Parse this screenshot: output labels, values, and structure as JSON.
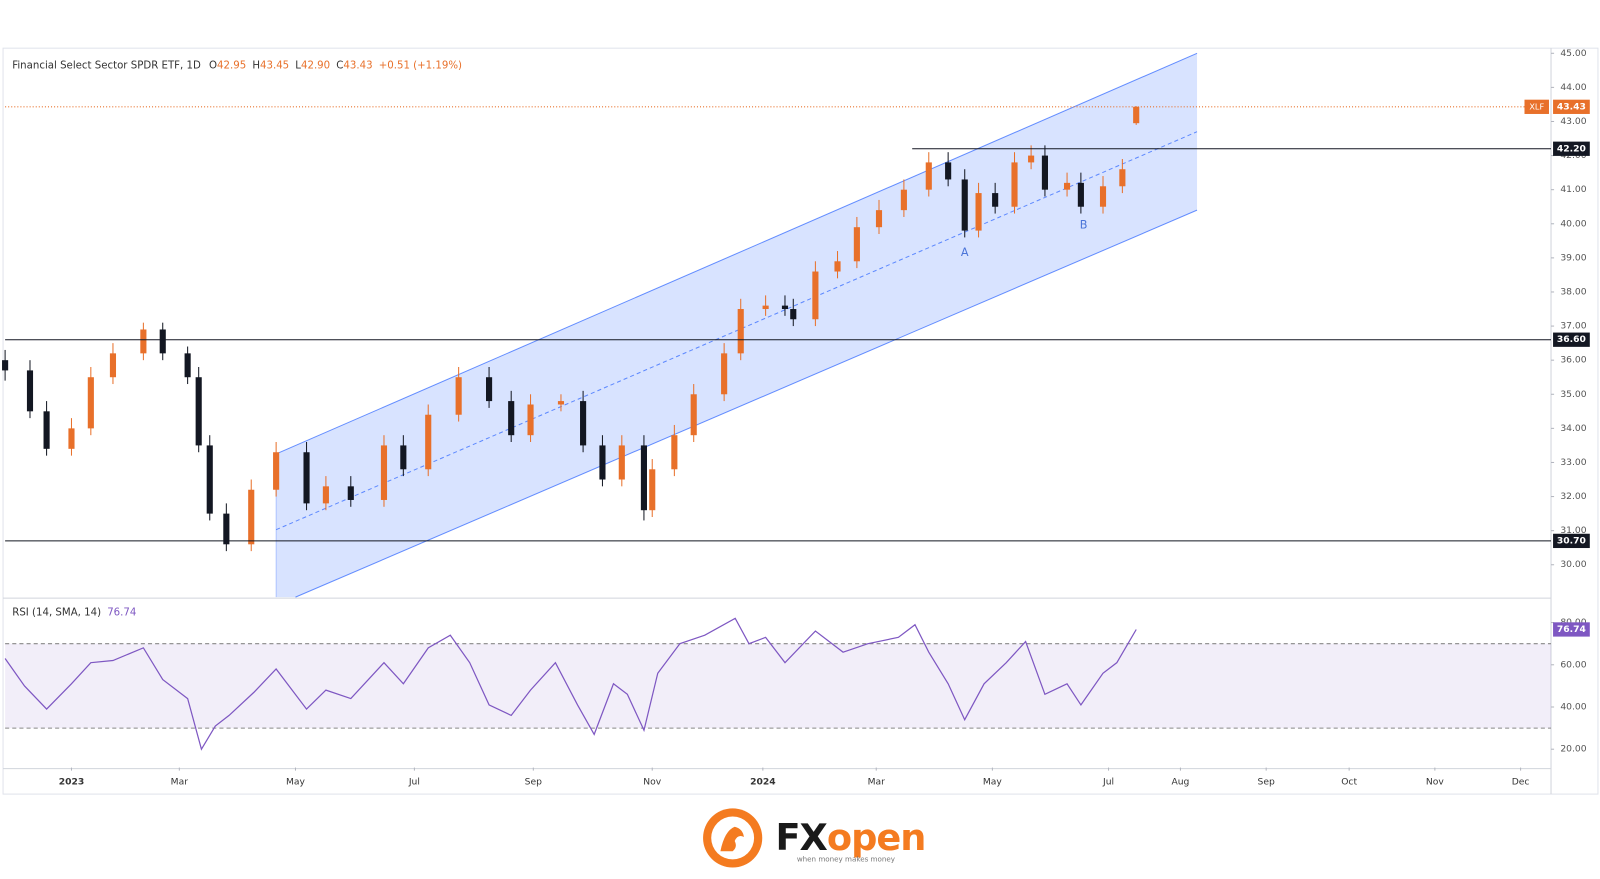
{
  "chart_data": {
    "type": "candlestick",
    "title": "Financial Select Sector SPDR ETF, 1D",
    "legend": {
      "labels": [
        "O",
        "H",
        "L",
        "C"
      ],
      "last_low_label": "42.90",
      "change": "+0.51 (+1.19%)"
    },
    "symbol": "XLF",
    "up_color": "#e8702a",
    "down_color": "#131722",
    "x": [
      -24,
      -15,
      -9,
      0,
      7,
      15,
      26,
      33,
      42,
      46,
      50,
      56,
      65,
      74,
      85,
      92,
      101,
      113,
      120,
      129,
      140,
      151,
      159,
      166,
      177,
      185,
      192,
      199,
      207,
      210,
      218,
      225,
      236,
      242,
      251,
      258,
      261,
      269,
      277,
      284,
      292,
      301,
      310,
      317,
      323,
      328,
      334,
      341,
      347,
      352,
      360,
      365,
      373,
      380,
      385
    ],
    "open": [
      36.0,
      35.7,
      34.5,
      33.4,
      34.0,
      35.5,
      36.2,
      36.9,
      36.2,
      35.5,
      33.5,
      31.5,
      30.6,
      32.2,
      33.3,
      31.8,
      32.3,
      31.9,
      33.5,
      32.8,
      34.4,
      35.5,
      34.8,
      33.8,
      34.7,
      34.8,
      33.5,
      32.5,
      33.5,
      31.6,
      32.8,
      33.8,
      35.0,
      36.2,
      37.5,
      37.6,
      37.5,
      37.2,
      38.6,
      38.9,
      39.9,
      40.4,
      41.0,
      41.8,
      41.3,
      39.8,
      40.9,
      40.5,
      41.8,
      42.0,
      41.0,
      41.2,
      40.5,
      41.1,
      42.95
    ],
    "high": [
      36.3,
      36.0,
      34.8,
      34.3,
      35.8,
      36.5,
      37.1,
      37.1,
      36.4,
      35.8,
      33.8,
      31.8,
      32.5,
      33.6,
      33.6,
      32.6,
      32.6,
      33.8,
      33.8,
      34.7,
      35.8,
      35.8,
      35.1,
      35.0,
      35.0,
      35.1,
      33.8,
      33.8,
      33.8,
      33.1,
      34.1,
      35.3,
      36.5,
      37.8,
      37.9,
      37.9,
      37.8,
      38.9,
      39.2,
      40.2,
      40.7,
      41.3,
      42.1,
      42.1,
      41.6,
      41.2,
      41.2,
      42.1,
      42.3,
      42.3,
      41.5,
      41.5,
      41.4,
      41.9,
      43.45
    ],
    "low": [
      35.4,
      34.3,
      33.2,
      33.2,
      33.8,
      35.3,
      36.0,
      36.0,
      35.3,
      33.3,
      31.3,
      30.4,
      30.4,
      32.0,
      31.6,
      31.6,
      31.7,
      31.7,
      32.6,
      32.6,
      34.2,
      34.6,
      33.6,
      33.6,
      34.5,
      33.3,
      32.3,
      32.3,
      31.3,
      31.4,
      32.6,
      33.6,
      34.8,
      36.0,
      37.3,
      37.3,
      37.0,
      37.0,
      38.4,
      38.7,
      39.7,
      40.2,
      40.8,
      41.1,
      39.6,
      39.6,
      40.3,
      40.3,
      41.6,
      40.8,
      40.8,
      40.3,
      40.3,
      40.9,
      42.9
    ],
    "close": [
      35.7,
      34.5,
      33.4,
      34.0,
      35.5,
      36.2,
      36.9,
      36.2,
      35.5,
      33.5,
      31.5,
      30.6,
      32.2,
      33.3,
      31.8,
      32.3,
      31.9,
      33.5,
      32.8,
      34.4,
      35.5,
      34.8,
      33.8,
      34.7,
      34.8,
      33.5,
      32.5,
      33.5,
      31.6,
      32.8,
      33.8,
      35.0,
      36.2,
      37.5,
      37.6,
      37.5,
      37.2,
      38.6,
      38.9,
      39.9,
      40.4,
      41.0,
      41.8,
      41.3,
      39.8,
      40.9,
      40.5,
      41.8,
      42.0,
      41.0,
      41.2,
      40.5,
      41.1,
      41.6,
      43.43
    ],
    "xlim": [
      -24,
      535
    ],
    "xticks": [
      {
        "value": 0,
        "label": "2023"
      },
      {
        "value": 39,
        "label": "Mar"
      },
      {
        "value": 81,
        "label": "May"
      },
      {
        "value": 124,
        "label": "Jul"
      },
      {
        "value": 167,
        "label": "Sep"
      },
      {
        "value": 210,
        "label": "Nov"
      },
      {
        "value": 250,
        "label": "2024"
      },
      {
        "value": 291,
        "label": "Mar"
      },
      {
        "value": 333,
        "label": "May"
      },
      {
        "value": 375,
        "label": "Jul"
      },
      {
        "value": 401,
        "label": "Aug"
      },
      {
        "value": 432,
        "label": "Sep"
      },
      {
        "value": 462,
        "label": "Oct"
      },
      {
        "value": 493,
        "label": "Nov"
      },
      {
        "value": 524,
        "label": "Dec"
      }
    ],
    "ylim": [
      29.05,
      45.15
    ],
    "yticks": [
      {
        "value": 30,
        "label": "30.00"
      },
      {
        "value": 31,
        "label": "31.00"
      },
      {
        "value": 32,
        "label": "32.00"
      },
      {
        "value": 33,
        "label": "33.00"
      },
      {
        "value": 34,
        "label": "34.00"
      },
      {
        "value": 35,
        "label": "35.00"
      },
      {
        "value": 36,
        "label": "36.00"
      },
      {
        "value": 37,
        "label": "37.00"
      },
      {
        "value": 38,
        "label": "38.00"
      },
      {
        "value": 39,
        "label": "39.00"
      },
      {
        "value": 40,
        "label": "40.00"
      },
      {
        "value": 41,
        "label": "41.00"
      },
      {
        "value": 42,
        "label": "42.00"
      },
      {
        "value": 43,
        "label": "43.00"
      },
      {
        "value": 44,
        "label": "44.00"
      },
      {
        "value": 45,
        "label": "45.00"
      }
    ],
    "levels": [
      {
        "value": 42.2,
        "label": "42.20",
        "from": 304
      },
      {
        "value": 36.6,
        "label": "36.60"
      },
      {
        "value": 30.7,
        "label": "30.70"
      }
    ],
    "channel": {
      "color": "#2962ff",
      "upper": [
        [
          74,
          33.25
        ],
        [
          407,
          45.0
        ]
      ],
      "lower": [
        [
          81,
          29.05
        ],
        [
          407,
          40.4
        ]
      ]
    },
    "annotations": [
      {
        "text": "A",
        "x": 323,
        "y": 39.15
      },
      {
        "text": "B",
        "x": 366,
        "y": 39.95
      }
    ],
    "rsi": {
      "title": "RSI (14, SMA, 14)",
      "color": "#7e57c2",
      "x": [
        -24,
        -17,
        -9,
        0,
        7,
        15,
        26,
        33,
        42,
        47,
        52,
        57,
        66,
        74,
        85,
        92,
        101,
        113,
        120,
        129,
        137,
        144,
        151,
        159,
        166,
        175,
        183,
        189,
        196,
        201,
        207,
        212,
        220,
        229,
        240,
        245,
        251,
        258,
        269,
        279,
        288,
        299,
        305,
        310,
        317,
        323,
        330,
        338,
        345,
        352,
        360,
        365,
        373,
        378,
        385
      ],
      "values": [
        63,
        50,
        39,
        51,
        61,
        62,
        68,
        53,
        44,
        20,
        31,
        36,
        47,
        58,
        39,
        48,
        44,
        61,
        51,
        68,
        74,
        61,
        41,
        36,
        48,
        61,
        41,
        27,
        51,
        46,
        29,
        56,
        70,
        74,
        82,
        70,
        73,
        61,
        76,
        66,
        70,
        73,
        79,
        66,
        51,
        34,
        51,
        61,
        71,
        46,
        51,
        41,
        56,
        61,
        76.74
      ],
      "ylim": [
        11.3,
        90.6
      ],
      "yticks": [
        {
          "value": 20,
          "label": "20.00"
        },
        {
          "value": 40,
          "label": "40.00"
        },
        {
          "value": 60,
          "label": "60.00"
        },
        {
          "value": 80,
          "label": "80.00"
        }
      ],
      "band": [
        30,
        70
      ]
    }
  },
  "footer": {
    "brand_fx": "FX",
    "brand_open": "open",
    "tagline": "when money makes money"
  }
}
